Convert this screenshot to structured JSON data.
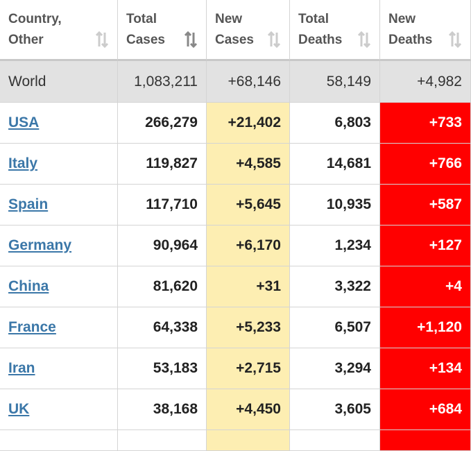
{
  "table": {
    "columns": [
      "Country, Other",
      "Total Cases",
      "New Cases",
      "Total Deaths",
      "New Deaths"
    ],
    "world": [
      "World",
      "1,083,211",
      "+68,146",
      "58,149",
      "+4,982"
    ],
    "rows": [
      [
        "USA",
        "266,279",
        "+21,402",
        "6,803",
        "+733"
      ],
      [
        "Italy",
        "119,827",
        "+4,585",
        "14,681",
        "+766"
      ],
      [
        "Spain",
        "117,710",
        "+5,645",
        "10,935",
        "+587"
      ],
      [
        "Germany",
        "90,964",
        "+6,170",
        "1,234",
        "+127"
      ],
      [
        "China",
        "81,620",
        "+31",
        "3,322",
        "+4"
      ],
      [
        "France",
        "64,338",
        "+5,233",
        "6,507",
        "+1,120"
      ],
      [
        "Iran",
        "53,183",
        "+2,715",
        "3,294",
        "+134"
      ],
      [
        "UK",
        "38,168",
        "+4,450",
        "3,605",
        "+684"
      ]
    ]
  }
}
